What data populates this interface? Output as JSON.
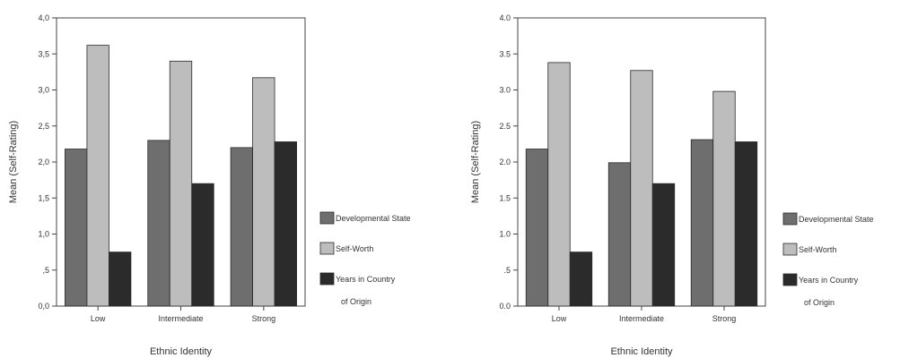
{
  "chart_data": [
    {
      "type": "bar",
      "categories": [
        "Low",
        "Intermediate",
        "Strong"
      ],
      "series": [
        {
          "name": "Developmental State",
          "values": [
            2.18,
            2.3,
            2.2
          ]
        },
        {
          "name": "Self-Worth",
          "values": [
            3.62,
            3.4,
            3.17
          ]
        },
        {
          "name": "Years in Country of Origin",
          "values": [
            0.75,
            1.7,
            2.28
          ]
        }
      ],
      "ylabel": "Mean (Self-Rating)",
      "xlabel": "Ethnic Identity",
      "ylim": [
        0,
        4
      ],
      "yticks": [
        "0,0",
        ",5",
        "1,0",
        "1,5",
        "2,0",
        "2,5",
        "3,0",
        "3,5",
        "4,0"
      ],
      "legend": {
        "position": "right",
        "lines": [
          [
            "Developmental State"
          ],
          [
            "Self-Worth"
          ],
          [
            "Years in Country",
            "of Origin"
          ]
        ]
      },
      "grid": false
    },
    {
      "type": "bar",
      "categories": [
        "Low",
        "Intermediate",
        "Strong"
      ],
      "series": [
        {
          "name": "Developmental State",
          "values": [
            2.18,
            1.99,
            2.31
          ]
        },
        {
          "name": "Self-Worth",
          "values": [
            3.38,
            3.27,
            2.98
          ]
        },
        {
          "name": "Years in Country of Origin",
          "values": [
            0.75,
            1.7,
            2.28
          ]
        }
      ],
      "ylabel": "Mean (Self-Rating)",
      "xlabel": "Ethnic Identity",
      "ylim": [
        0,
        4
      ],
      "yticks": [
        "0.0",
        ".5",
        "1.0",
        "1.5",
        "2.0",
        "2.5",
        "3.0",
        "3.5",
        "4.0"
      ],
      "legend": {
        "position": "right",
        "lines": [
          [
            "Developmental State"
          ],
          [
            "Self-Worth"
          ],
          [
            "Years in Country",
            "of Origin"
          ]
        ]
      },
      "grid": false
    }
  ],
  "colors": {
    "series": [
      "#6e6e6e",
      "#bdbdbd",
      "#2b2b2b"
    ],
    "stroke": "#2a2a2a",
    "axis": "#444444"
  }
}
